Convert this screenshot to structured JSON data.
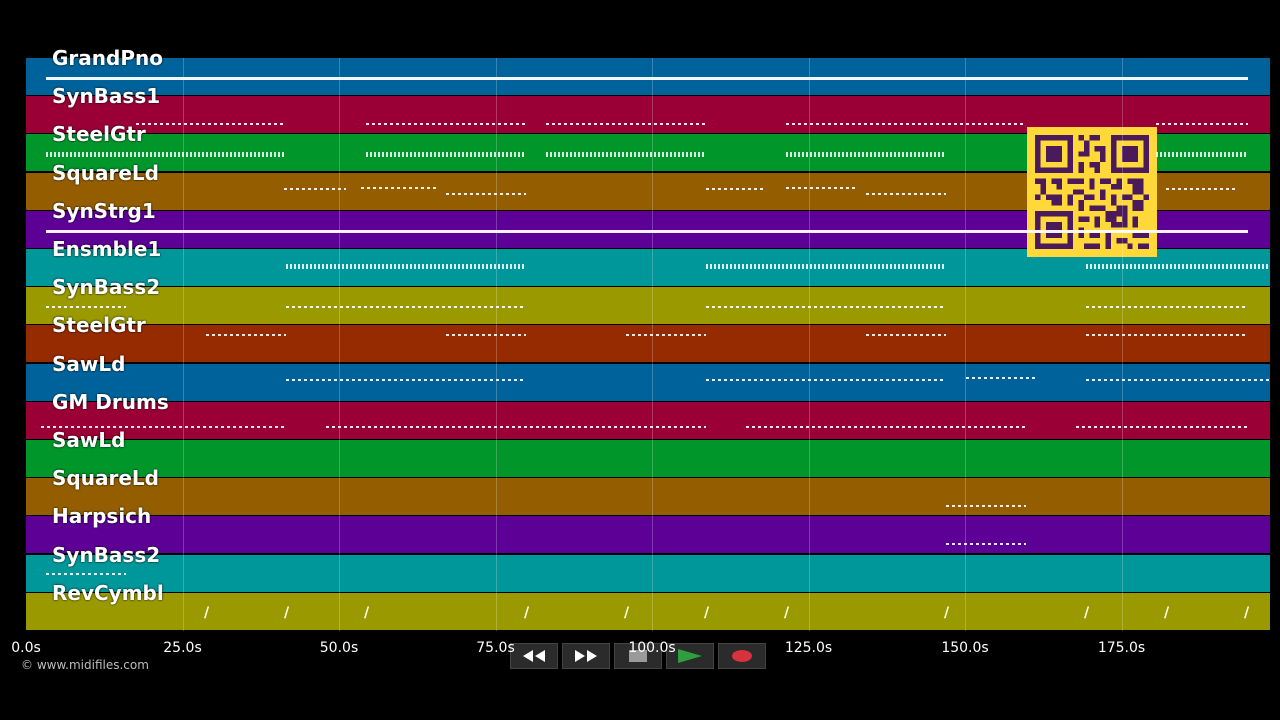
{
  "tracks": [
    {
      "name": "GrandPno",
      "color": "#00629a"
    },
    {
      "name": "SynBass1",
      "color": "#9a0035"
    },
    {
      "name": "SteelGtr",
      "color": "#00962a"
    },
    {
      "name": "SquareLd",
      "color": "#945e00"
    },
    {
      "name": "SynStrg1",
      "color": "#5d0096"
    },
    {
      "name": "Ensmble1",
      "color": "#00979a"
    },
    {
      "name": "SynBass2",
      "color": "#9a9a00"
    },
    {
      "name": "SteelGtr",
      "color": "#962a00"
    },
    {
      "name": "SawLd",
      "color": "#00629a"
    },
    {
      "name": "GM Drums",
      "color": "#9a0035"
    },
    {
      "name": "SawLd",
      "color": "#00962a"
    },
    {
      "name": "SquareLd",
      "color": "#945e00"
    },
    {
      "name": "Harpsich",
      "color": "#5d0096"
    },
    {
      "name": "SynBass2",
      "color": "#00979a"
    },
    {
      "name": "RevCymbl",
      "color": "#9a9a00"
    }
  ],
  "timeline": {
    "ticks": [
      "0.0s",
      "25.0s",
      "50.0s",
      "75.0s",
      "100.0s",
      "125.0s",
      "150.0s",
      "175.0s"
    ]
  },
  "footer": {
    "copyright": "© www.midifiles.com"
  },
  "transport": {
    "rewind_icon": "rewind-icon",
    "forward_icon": "fast-forward-icon",
    "stop_icon": "stop-icon",
    "play_icon": "play-icon",
    "record_icon": "record-icon",
    "play_color": "#2e9e3e",
    "record_color": "#d8323c"
  },
  "overlay": {
    "qr_icon": "qr-code-icon",
    "qr_color": "#ffd83a"
  }
}
